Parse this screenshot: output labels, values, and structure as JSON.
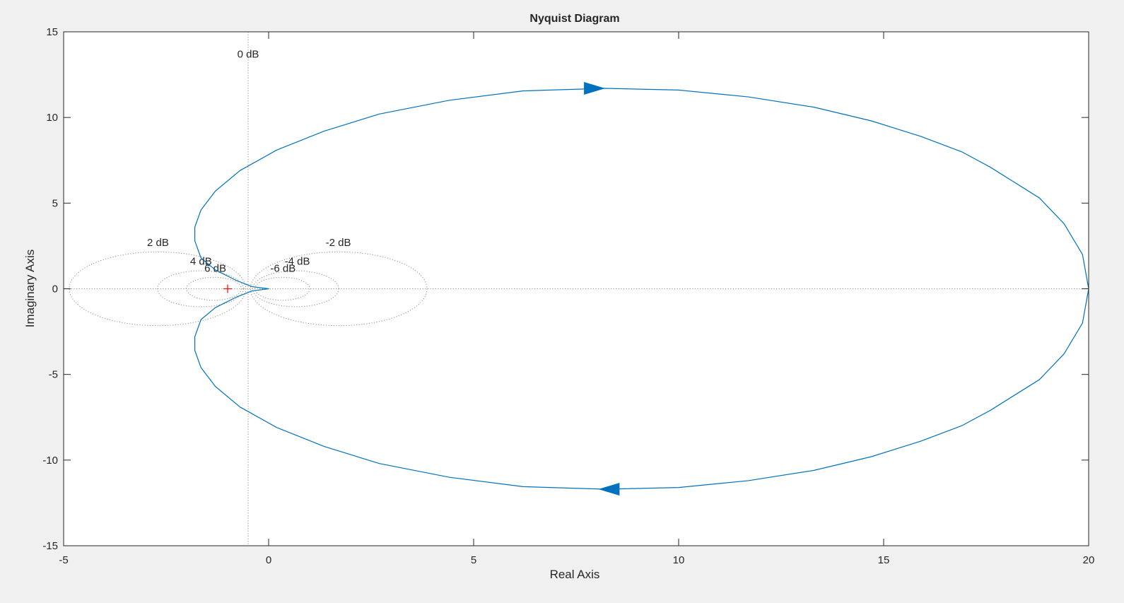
{
  "chart_data": {
    "type": "line",
    "title": "Nyquist Diagram",
    "xlabel": "Real Axis",
    "ylabel": "Imaginary Axis",
    "xlim": [
      -5,
      20
    ],
    "ylim": [
      -15,
      15
    ],
    "xticks": [
      -5,
      0,
      5,
      10,
      15,
      20
    ],
    "yticks": [
      -15,
      -10,
      -5,
      0,
      5,
      10,
      15
    ],
    "x_tick_labels": [
      "-5",
      "0",
      "5",
      "10",
      "15",
      "20"
    ],
    "y_tick_labels": [
      "-15",
      "-10",
      "-5",
      "0",
      "5",
      "10",
      "15"
    ],
    "grid": "off",
    "legend": "none",
    "colors": {
      "curve": "#0072bd",
      "critical_point": "#ff0000",
      "gridlines": "#8c8c8c",
      "axes_background": "#ffffff",
      "figure_background": "#f0f0f0"
    },
    "critical_point": {
      "x": -1,
      "y": 0
    },
    "mgrid": {
      "zero_db_line_x": -0.5,
      "zero_db_label": "0 dB",
      "circles": [
        {
          "db": 2,
          "label": "2 dB",
          "label_at": {
            "x": -2.7,
            "y": 2.5
          }
        },
        {
          "db": 4,
          "label": "4 dB",
          "label_at": {
            "x": -1.65,
            "y": 1.4
          }
        },
        {
          "db": 6,
          "label": "6 dB",
          "label_at": {
            "x": -1.3,
            "y": 1.0
          }
        },
        {
          "db": -2,
          "label": "-2 dB",
          "label_at": {
            "x": 1.7,
            "y": 2.5
          }
        },
        {
          "db": -4,
          "label": "-4 dB",
          "label_at": {
            "x": 0.7,
            "y": 1.4
          }
        },
        {
          "db": -6,
          "label": "-6 dB",
          "label_at": {
            "x": 0.35,
            "y": 1.0
          }
        }
      ]
    },
    "series": [
      {
        "points": [
          [
            20.0,
            0.0
          ],
          [
            19.85,
            2.0
          ],
          [
            19.4,
            3.8
          ],
          [
            18.8,
            5.3
          ],
          [
            17.6,
            7.1
          ],
          [
            16.9,
            8.0
          ],
          [
            15.9,
            8.9
          ],
          [
            14.7,
            9.8
          ],
          [
            13.3,
            10.6
          ],
          [
            11.7,
            11.2
          ],
          [
            10.0,
            11.6
          ],
          [
            8.2,
            11.7
          ],
          [
            6.2,
            11.55
          ],
          [
            4.4,
            11.0
          ],
          [
            2.7,
            10.2
          ],
          [
            1.35,
            9.2
          ],
          [
            0.2,
            8.1
          ],
          [
            -0.7,
            6.9
          ],
          [
            -1.3,
            5.7
          ],
          [
            -1.65,
            4.6
          ],
          [
            -1.8,
            3.6
          ],
          [
            -1.8,
            2.8
          ],
          [
            -1.65,
            1.8
          ],
          [
            -1.3,
            1.1
          ],
          [
            -0.8,
            0.5
          ],
          [
            -0.4,
            0.12
          ],
          [
            0.0,
            0.0
          ]
        ],
        "mirrored": true,
        "direction_arrows": [
          {
            "x": 7.95,
            "y": 11.7,
            "direction": "right"
          },
          {
            "x": 8.3,
            "y": -11.7,
            "direction": "left"
          }
        ]
      }
    ]
  }
}
